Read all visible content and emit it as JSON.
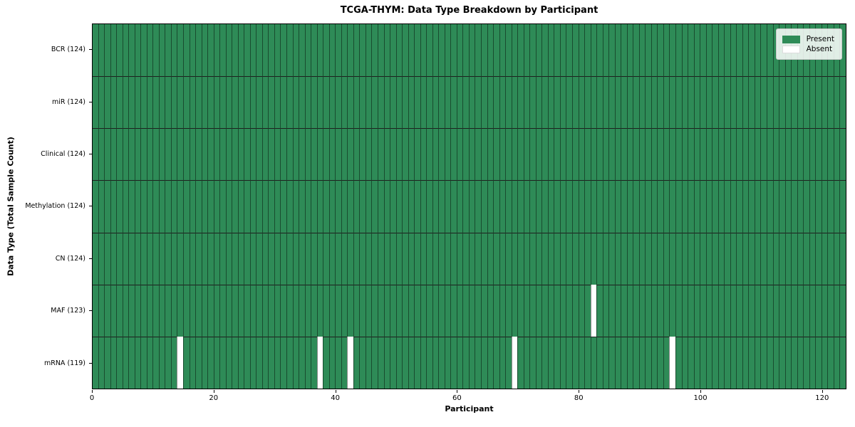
{
  "chart_data": {
    "type": "heatmap",
    "title": "TCGA-THYM: Data Type Breakdown by Participant",
    "xlabel": "Participant",
    "ylabel": "Data Type (Total Sample Count)",
    "n_participants": 124,
    "xlim": [
      0,
      124
    ],
    "x_ticks": [
      0,
      20,
      40,
      60,
      80,
      100,
      120
    ],
    "grid": false,
    "legend_position": "upper right",
    "rows": [
      {
        "label": "BCR (124)",
        "present_count": 124,
        "absent_participants": []
      },
      {
        "label": "miR (124)",
        "present_count": 124,
        "absent_participants": []
      },
      {
        "label": "Clinical (124)",
        "present_count": 124,
        "absent_participants": []
      },
      {
        "label": "Methylation (124)",
        "present_count": 124,
        "absent_participants": []
      },
      {
        "label": "CN (124)",
        "present_count": 124,
        "absent_participants": []
      },
      {
        "label": "MAF (123)",
        "present_count": 123,
        "absent_participants": [
          82
        ]
      },
      {
        "label": "mRNA (119)",
        "present_count": 119,
        "absent_participants": [
          14,
          37,
          42,
          69,
          95
        ]
      }
    ],
    "legend": [
      {
        "label": "Present",
        "color": "#2e8b57"
      },
      {
        "label": "Absent",
        "color": "#ffffff"
      }
    ],
    "colors": {
      "present": "#2e8b57",
      "absent": "#ffffff",
      "cell_edge": "rgba(0,0,0,0.45)",
      "row_line": "#1f1f1f",
      "spine": "#000000"
    }
  }
}
